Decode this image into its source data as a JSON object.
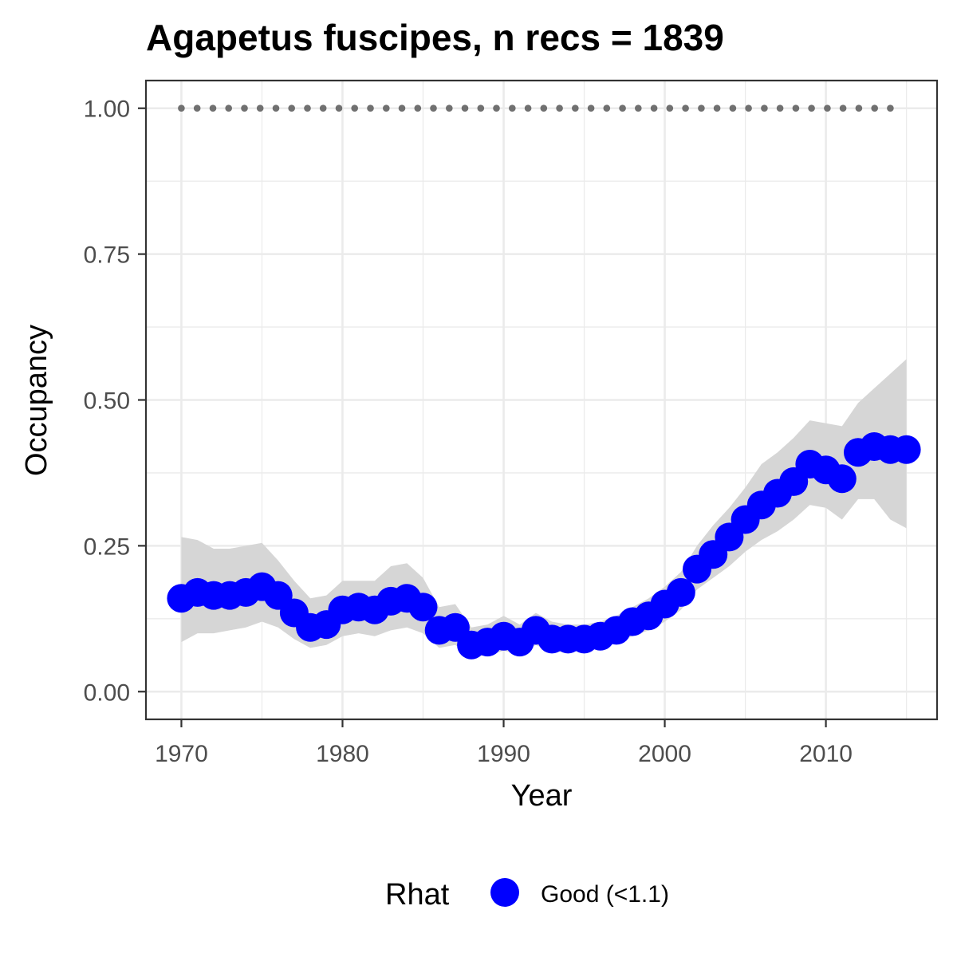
{
  "chart_data": {
    "type": "line",
    "title": "Agapetus fuscipes, n recs = 1839",
    "xlabel": "Year",
    "ylabel": "Occupancy",
    "xlim": [
      1967.8,
      2016.9
    ],
    "ylim": [
      -0.0475,
      1.0475
    ],
    "x_ticks": [
      1970,
      1980,
      1990,
      2000,
      2010
    ],
    "x_tick_labels": [
      "1970",
      "1980",
      "1990",
      "2000",
      "2010"
    ],
    "y_ticks": [
      0,
      0.25,
      0.5,
      0.75,
      1.0
    ],
    "y_tick_labels": [
      "0.00",
      "0.25",
      "0.50",
      "0.75",
      "1.00"
    ],
    "grid": true,
    "legend": {
      "title": "Rhat",
      "position": "bottom",
      "entries": [
        {
          "label": "Good (<1.1)",
          "color": "#0000ff"
        }
      ]
    },
    "colors": {
      "points": "#0000ff",
      "ribbon": "#d6d6d6",
      "dotted_line": "#707070",
      "grid": "#ebebeb",
      "panel_border": "#333333"
    },
    "series": [
      {
        "kind": "points",
        "x": [
          1970,
          1971,
          1972,
          1973,
          1974,
          1975,
          1976,
          1977,
          1978,
          1979,
          1980,
          1981,
          1982,
          1983,
          1984,
          1985,
          1986,
          1987,
          1988,
          1989,
          1990,
          1991,
          1992,
          1993,
          1994,
          1995,
          1996,
          1997,
          1998,
          1999,
          2000,
          2001,
          2002,
          2003,
          2004,
          2005,
          2006,
          2007,
          2008,
          2009,
          2010,
          2011,
          2012,
          2013,
          2014,
          2015
        ],
        "y": [
          0.16,
          0.17,
          0.165,
          0.165,
          0.17,
          0.18,
          0.165,
          0.135,
          0.11,
          0.115,
          0.14,
          0.145,
          0.14,
          0.155,
          0.16,
          0.145,
          0.105,
          0.11,
          0.08,
          0.085,
          0.095,
          0.085,
          0.105,
          0.09,
          0.09,
          0.09,
          0.095,
          0.105,
          0.12,
          0.13,
          0.15,
          0.17,
          0.21,
          0.235,
          0.265,
          0.295,
          0.32,
          0.34,
          0.36,
          0.39,
          0.38,
          0.365,
          0.41,
          0.42,
          0.415,
          0.415
        ]
      },
      {
        "kind": "ribbon",
        "x": [
          1970,
          1971,
          1972,
          1973,
          1974,
          1975,
          1976,
          1977,
          1978,
          1979,
          1980,
          1981,
          1982,
          1983,
          1984,
          1985,
          1986,
          1987,
          1988,
          1989,
          1990,
          1991,
          1992,
          1993,
          1994,
          1995,
          1996,
          1997,
          1998,
          1999,
          2000,
          2001,
          2002,
          2003,
          2004,
          2005,
          2006,
          2007,
          2008,
          2009,
          2010,
          2011,
          2012,
          2013,
          2014,
          2015
        ],
        "lower": [
          0.085,
          0.1,
          0.1,
          0.105,
          0.11,
          0.12,
          0.11,
          0.09,
          0.075,
          0.08,
          0.095,
          0.1,
          0.095,
          0.105,
          0.11,
          0.1,
          0.075,
          0.08,
          0.06,
          0.062,
          0.07,
          0.065,
          0.08,
          0.068,
          0.068,
          0.07,
          0.075,
          0.085,
          0.095,
          0.105,
          0.12,
          0.14,
          0.175,
          0.195,
          0.215,
          0.24,
          0.26,
          0.275,
          0.295,
          0.32,
          0.315,
          0.295,
          0.33,
          0.33,
          0.295,
          0.28
        ],
        "upper": [
          0.265,
          0.26,
          0.245,
          0.245,
          0.25,
          0.255,
          0.225,
          0.19,
          0.16,
          0.165,
          0.19,
          0.19,
          0.19,
          0.215,
          0.22,
          0.195,
          0.145,
          0.15,
          0.11,
          0.115,
          0.13,
          0.115,
          0.135,
          0.12,
          0.115,
          0.115,
          0.12,
          0.13,
          0.145,
          0.16,
          0.18,
          0.205,
          0.25,
          0.285,
          0.315,
          0.35,
          0.39,
          0.41,
          0.435,
          0.465,
          0.46,
          0.455,
          0.495,
          0.52,
          0.545,
          0.57
        ]
      },
      {
        "kind": "dotted_line",
        "x": [
          1970,
          2014
        ],
        "y": [
          1.0,
          1.0
        ]
      }
    ]
  }
}
